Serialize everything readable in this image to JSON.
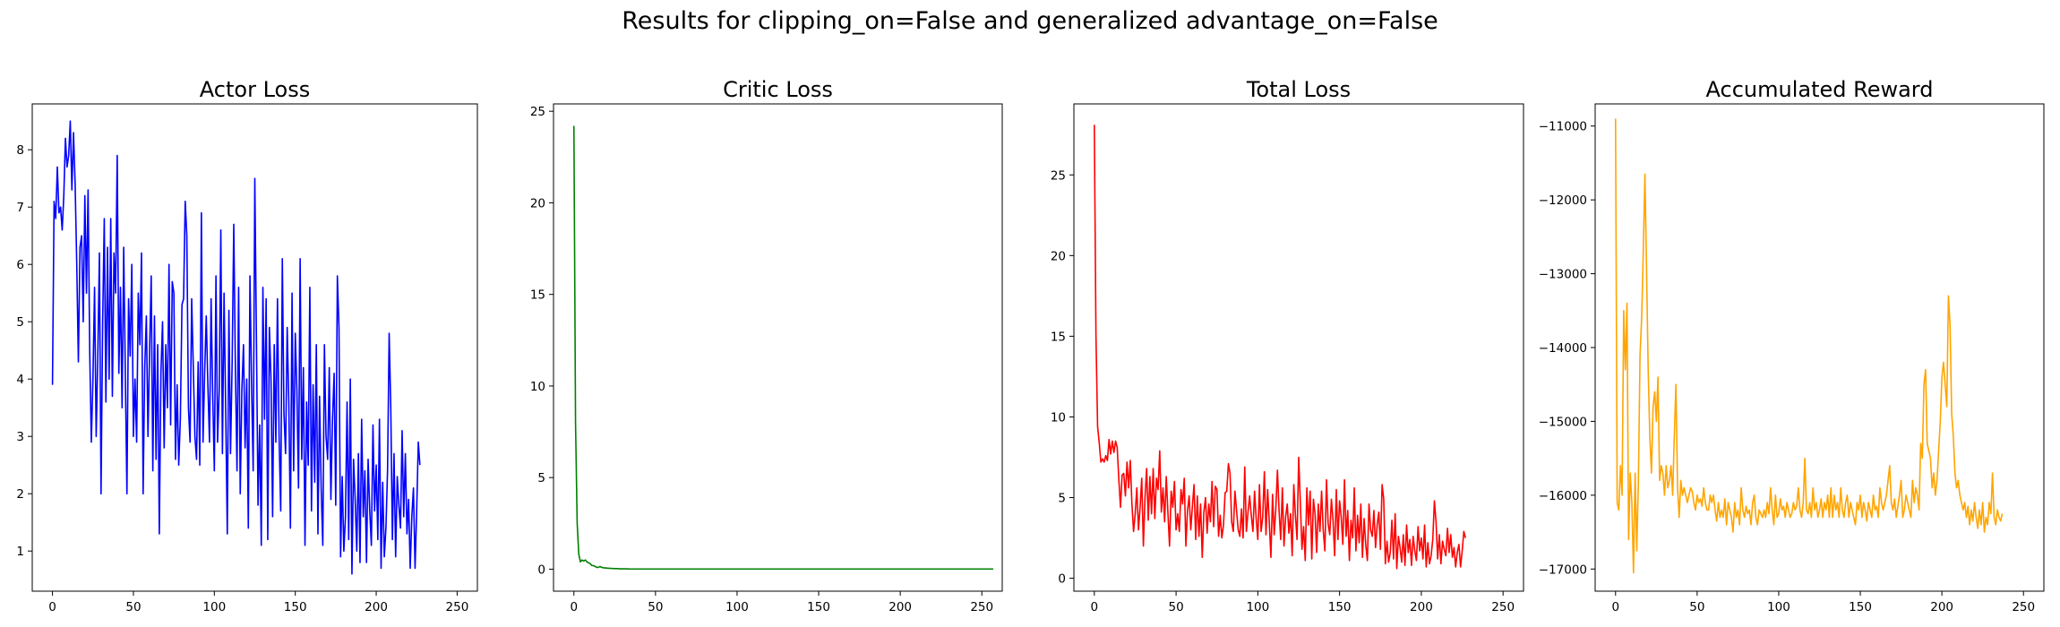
{
  "suptitle": "Results for clipping_on=False and generalized advantage_on=False",
  "chart_data": [
    {
      "type": "line",
      "title": "Actor Loss",
      "color": "#0000ff",
      "xlim": [
        -12.5,
        262.5
      ],
      "ylim": [
        0.3,
        8.8
      ],
      "xticks": [
        0,
        50,
        100,
        150,
        200,
        250
      ],
      "yticks": [
        1,
        2,
        3,
        4,
        5,
        6,
        7,
        8
      ],
      "x_start": 0,
      "values": [
        3.9,
        7.1,
        6.8,
        7.7,
        6.9,
        7.0,
        6.6,
        7.2,
        8.2,
        7.7,
        7.9,
        8.5,
        7.3,
        8.3,
        7.4,
        6.0,
        4.3,
        6.3,
        6.5,
        5.0,
        7.2,
        5.5,
        7.3,
        4.5,
        2.9,
        4.0,
        5.6,
        3.0,
        4.4,
        6.2,
        2.0,
        5.0,
        6.8,
        3.6,
        6.3,
        4.0,
        6.8,
        3.7,
        6.2,
        5.5,
        7.9,
        4.1,
        5.6,
        3.5,
        6.3,
        4.1,
        2.0,
        5.4,
        4.4,
        6.0,
        3.0,
        4.0,
        2.9,
        5.5,
        4.6,
        6.2,
        2.0,
        4.2,
        5.1,
        3.0,
        4.5,
        5.8,
        2.4,
        5.1,
        2.6,
        4.6,
        1.3,
        4.1,
        5.0,
        2.8,
        4.6,
        3.5,
        6.0,
        3.2,
        5.7,
        5.5,
        2.6,
        3.9,
        2.5,
        3.3,
        5.3,
        5.4,
        7.1,
        6.5,
        3.5,
        2.9,
        5.4,
        4.2,
        3.0,
        2.6,
        4.3,
        2.5,
        6.9,
        2.9,
        4.1,
        5.1,
        3.9,
        2.9,
        5.4,
        3.7,
        2.4,
        5.8,
        2.9,
        3.8,
        6.6,
        2.7,
        5.5,
        3.5,
        1.3,
        5.2,
        2.7,
        4.3,
        6.7,
        4.2,
        2.4,
        5.6,
        2.0,
        3.8,
        4.6,
        2.8,
        4.0,
        1.4,
        5.8,
        3.9,
        2.4,
        7.5,
        4.7,
        1.8,
        3.2,
        1.1,
        5.6,
        3.3,
        5.4,
        1.2,
        4.9,
        4.0,
        1.6,
        4.6,
        2.9,
        5.4,
        3.0,
        1.7,
        6.1,
        3.4,
        2.7,
        4.9,
        3.6,
        1.4,
        5.5,
        2.4,
        4.8,
        3.8,
        2.1,
        6.1,
        2.6,
        4.2,
        1.1,
        3.6,
        2.5,
        5.6,
        1.7,
        3.9,
        2.2,
        4.6,
        1.3,
        3.7,
        2.1,
        1.1,
        4.6,
        3.0,
        2.6,
        4.2,
        1.9,
        3.3,
        4.1,
        1.8,
        5.8,
        4.9,
        0.9,
        2.3,
        1.0,
        1.6,
        3.6,
        1.2,
        4.0,
        0.6,
        2.6,
        1.9,
        1.0,
        2.7,
        0.8,
        3.3,
        1.6,
        2.4,
        0.8,
        2.6,
        1.7,
        1.1,
        3.2,
        1.7,
        2.5,
        1.2,
        3.3,
        0.7,
        2.2,
        0.9,
        1.4,
        2.4,
        4.8,
        3.5,
        1.2,
        2.7,
        0.9,
        2.3,
        1.8,
        1.4,
        3.1,
        1.6,
        2.7,
        1.3,
        1.9,
        0.7,
        1.6,
        2.1,
        0.7,
        1.7,
        2.9,
        2.5
      ],
      "values_note_removed": true
    },
    {
      "type": "line",
      "title": "Critic Loss",
      "color": "#008000",
      "xlim": [
        -12.5,
        262.5
      ],
      "ylim": [
        -1.2,
        25.4
      ],
      "xticks": [
        0,
        50,
        100,
        150,
        200,
        250
      ],
      "yticks": [
        0,
        5,
        10,
        15,
        20,
        25
      ],
      "x_start": 0,
      "values": [
        24.2,
        8.0,
        2.5,
        0.8,
        0.4,
        0.5,
        0.45,
        0.5,
        0.4,
        0.35,
        0.3,
        0.2,
        0.2,
        0.15,
        0.1,
        0.1,
        0.15,
        0.1,
        0.08,
        0.07,
        0.06,
        0.05,
        0.05,
        0.04,
        0.04,
        0.03,
        0.03,
        0.03,
        0.02,
        0.02,
        0.02,
        0.02,
        0.02,
        0.02,
        0.01,
        0.01,
        0.01,
        0.01,
        0.01,
        0.01,
        0.01,
        0.01,
        0.01,
        0.01,
        0.01,
        0.01,
        0.01,
        0.01,
        0.01,
        0.01,
        0.01,
        0.01,
        0.01,
        0.01,
        0.01,
        0.01,
        0.01,
        0.01,
        0.01,
        0.01,
        0.01,
        0.01,
        0.01,
        0.01,
        0.01,
        0.01,
        0.01,
        0.01,
        0.01,
        0.01,
        0.01,
        0.01,
        0.01,
        0.01,
        0.01,
        0.01,
        0.01,
        0.01,
        0.01,
        0.01,
        0.01,
        0.01,
        0.01,
        0.01,
        0.01,
        0.01,
        0.01,
        0.01,
        0.01,
        0.01,
        0.01,
        0.01,
        0.01,
        0.01,
        0.01,
        0.01,
        0.01,
        0.01,
        0.01,
        0.01,
        0.01,
        0.01,
        0.01,
        0.01,
        0.01,
        0.01,
        0.01,
        0.01,
        0.01,
        0.01,
        0.01,
        0.01,
        0.01,
        0.01,
        0.01,
        0.01,
        0.01,
        0.01,
        0.01,
        0.01,
        0.01,
        0.01,
        0.01,
        0.01,
        0.01,
        0.01,
        0.01,
        0.01,
        0.01,
        0.01,
        0.01,
        0.01,
        0.01,
        0.01,
        0.01,
        0.01,
        0.01,
        0.01,
        0.01,
        0.01,
        0.01,
        0.01,
        0.01,
        0.01,
        0.01,
        0.01,
        0.01,
        0.01,
        0.01,
        0.01,
        0.01,
        0.01,
        0.01,
        0.01,
        0.01,
        0.01,
        0.01,
        0.01,
        0.01,
        0.01,
        0.01,
        0.01,
        0.01,
        0.01,
        0.01,
        0.01,
        0.01,
        0.01,
        0.01,
        0.01,
        0.01,
        0.01,
        0.01,
        0.01,
        0.01,
        0.01,
        0.01,
        0.01,
        0.01,
        0.01,
        0.01,
        0.01,
        0.01,
        0.01,
        0.01,
        0.01,
        0.01,
        0.01,
        0.01,
        0.01,
        0.01,
        0.01,
        0.01,
        0.01,
        0.01,
        0.01,
        0.01,
        0.01,
        0.01,
        0.01,
        0.01,
        0.01,
        0.01,
        0.01,
        0.01,
        0.01,
        0.01,
        0.01,
        0.01,
        0.01,
        0.01,
        0.01,
        0.01,
        0.01,
        0.01,
        0.01,
        0.01,
        0.01,
        0.01,
        0.01,
        0.01,
        0.01,
        0.01,
        0.01,
        0.01,
        0.01,
        0.01,
        0.01,
        0.01,
        0.01,
        0.01,
        0.01,
        0.01,
        0.01,
        0.01,
        0.01,
        0.01,
        0.01,
        0.01,
        0.01,
        0.01,
        0.01,
        0.01,
        0.01,
        0.01,
        0.01,
        0.01,
        0.01,
        0.01,
        0.01,
        0.01,
        0.01,
        0.01,
        0.01,
        0.01,
        0.01,
        0.01,
        0.01
      ]
    },
    {
      "type": "line",
      "title": "Total Loss",
      "color": "#ff0000",
      "xlim": [
        -12.5,
        262.5
      ],
      "ylim": [
        -0.8,
        29.4
      ],
      "xticks": [
        0,
        50,
        100,
        150,
        200,
        250
      ],
      "yticks": [
        0,
        5,
        10,
        15,
        20,
        25
      ],
      "x_start": 0,
      "values": [
        28.1,
        15.1,
        9.4,
        8.4,
        7.2,
        7.4,
        7.2,
        7.6,
        7.3,
        8.6,
        7.7,
        8.5,
        7.8,
        8.5,
        8.1,
        6.1,
        4.4,
        6.4,
        6.5,
        5.1,
        7.2,
        5.6,
        7.3,
        4.6,
        2.9,
        4.0,
        5.6,
        3.0,
        4.4,
        6.2,
        2.0,
        5.0,
        6.8,
        3.6,
        6.3,
        4.0,
        6.8,
        3.7,
        6.2,
        5.5,
        7.9,
        4.1,
        5.6,
        3.5,
        6.3,
        4.1,
        2.0,
        5.4,
        4.4,
        6.0,
        3.0,
        4.0,
        2.9,
        5.5,
        4.6,
        6.2,
        2.0,
        4.2,
        5.1,
        3.0,
        4.5,
        5.8,
        2.4,
        5.1,
        2.6,
        4.6,
        1.3,
        4.1,
        5.0,
        2.8,
        4.6,
        3.5,
        6.0,
        3.2,
        5.7,
        5.5,
        2.6,
        3.9,
        2.5,
        3.3,
        5.3,
        5.4,
        7.1,
        6.5,
        3.5,
        2.9,
        5.4,
        4.2,
        3.0,
        2.6,
        4.3,
        2.5,
        6.9,
        2.9,
        4.1,
        5.1,
        3.9,
        2.9,
        5.4,
        3.7,
        2.4,
        5.8,
        2.9,
        3.8,
        6.6,
        2.7,
        5.5,
        3.5,
        1.3,
        5.2,
        2.7,
        4.3,
        6.7,
        4.2,
        2.4,
        5.6,
        2.0,
        3.8,
        4.6,
        2.8,
        4.0,
        1.4,
        5.8,
        3.9,
        2.4,
        7.5,
        4.7,
        1.8,
        3.2,
        1.1,
        5.6,
        3.3,
        5.4,
        1.2,
        4.9,
        4.0,
        1.6,
        4.6,
        2.9,
        5.4,
        3.0,
        1.7,
        6.1,
        3.4,
        2.7,
        4.9,
        3.6,
        1.4,
        5.5,
        2.4,
        4.8,
        3.8,
        2.1,
        6.1,
        2.6,
        4.2,
        1.1,
        3.6,
        2.5,
        5.6,
        1.7,
        3.9,
        2.2,
        4.6,
        1.3,
        3.7,
        2.1,
        1.1,
        4.6,
        3.0,
        2.6,
        4.2,
        1.9,
        3.3,
        4.1,
        1.8,
        5.8,
        4.9,
        0.9,
        2.3,
        1.0,
        1.6,
        3.6,
        1.2,
        4.0,
        0.6,
        2.6,
        1.9,
        1.0,
        2.7,
        0.8,
        3.3,
        1.6,
        2.4,
        0.8,
        2.6,
        1.7,
        1.1,
        3.2,
        1.7,
        2.5,
        1.2,
        3.3,
        0.7,
        2.2,
        0.9,
        1.4,
        2.4,
        4.8,
        3.5,
        1.2,
        2.7,
        0.9,
        2.3,
        1.8,
        1.4,
        3.1,
        1.6,
        2.7,
        1.3,
        1.9,
        0.7,
        1.6,
        2.1,
        0.7,
        1.7,
        2.9,
        2.5
      ]
    },
    {
      "type": "line",
      "title": "Accumulated Reward",
      "color": "#ffa500",
      "xlim": [
        -12.5,
        262.5
      ],
      "ylim": [
        -17300,
        -10700
      ],
      "xticks": [
        0,
        50,
        100,
        150,
        200,
        250
      ],
      "yticks": [
        -11000,
        -12000,
        -13000,
        -14000,
        -15000,
        -16000,
        -17000
      ],
      "x_start": 0,
      "values": [
        -10900,
        -16100,
        -16200,
        -15600,
        -16000,
        -13500,
        -14300,
        -13400,
        -16600,
        -15700,
        -16100,
        -17050,
        -15700,
        -16750,
        -15800,
        -14100,
        -13600,
        -12700,
        -11650,
        -12950,
        -14300,
        -15200,
        -15700,
        -14800,
        -14600,
        -15000,
        -14400,
        -15800,
        -15600,
        -15700,
        -16000,
        -15600,
        -15900,
        -15800,
        -15600,
        -16000,
        -15200,
        -14500,
        -15900,
        -16300,
        -15800,
        -16000,
        -15900,
        -16000,
        -16100,
        -16000,
        -15900,
        -15950,
        -16100,
        -16200,
        -16000,
        -16100,
        -16050,
        -16150,
        -15900,
        -16100,
        -16200,
        -16200,
        -16000,
        -16100,
        -16000,
        -16200,
        -16350,
        -16100,
        -16300,
        -16200,
        -16300,
        -16050,
        -16400,
        -16100,
        -16200,
        -16300,
        -16500,
        -16100,
        -16300,
        -16200,
        -16400,
        -15900,
        -16200,
        -16300,
        -16150,
        -16250,
        -16200,
        -16400,
        -16100,
        -16000,
        -16300,
        -16400,
        -16200,
        -16250,
        -16300,
        -16200,
        -16300,
        -16100,
        -16250,
        -15900,
        -16200,
        -16400,
        -16000,
        -16300,
        -16250,
        -16050,
        -16200,
        -16150,
        -16300,
        -16100,
        -16200,
        -16300,
        -16250,
        -16100,
        -16200,
        -16150,
        -15900,
        -16200,
        -16300,
        -16100,
        -15500,
        -16200,
        -16250,
        -16100,
        -16300,
        -15900,
        -16200,
        -16100,
        -16300,
        -16200,
        -16050,
        -16300,
        -16100,
        -16200,
        -16000,
        -16300,
        -15900,
        -16300,
        -16000,
        -16200,
        -16100,
        -16300,
        -15900,
        -16200,
        -16300,
        -16100,
        -16000,
        -16300,
        -16100,
        -16200,
        -16300,
        -16400,
        -16100,
        -16200,
        -16000,
        -16300,
        -16100,
        -16200,
        -16350,
        -16100,
        -16200,
        -16300,
        -16000,
        -16200,
        -16150,
        -16300,
        -15900,
        -16100,
        -16200,
        -16100,
        -16000,
        -15800,
        -15600,
        -16100,
        -16200,
        -16050,
        -16300,
        -16150,
        -16000,
        -15800,
        -16300,
        -16200,
        -16000,
        -16100,
        -16200,
        -16300,
        -15800,
        -16100,
        -15900,
        -16000,
        -16200,
        -15300,
        -15500,
        -14500,
        -14300,
        -15300,
        -15400,
        -15500,
        -15900,
        -15700,
        -16000,
        -15800,
        -15400,
        -15000,
        -14400,
        -14200,
        -14500,
        -14800,
        -13300,
        -13700,
        -14900,
        -15200,
        -15700,
        -15900,
        -15800,
        -16000,
        -16100,
        -16200,
        -16100,
        -16300,
        -16150,
        -16400,
        -16200,
        -16350,
        -16100,
        -16300,
        -16450,
        -16200,
        -16400,
        -16100,
        -16500,
        -16300,
        -16400,
        -16100,
        -16250,
        -15700,
        -16300,
        -16400,
        -16200,
        -16300,
        -16350,
        -16250
      ]
    }
  ]
}
